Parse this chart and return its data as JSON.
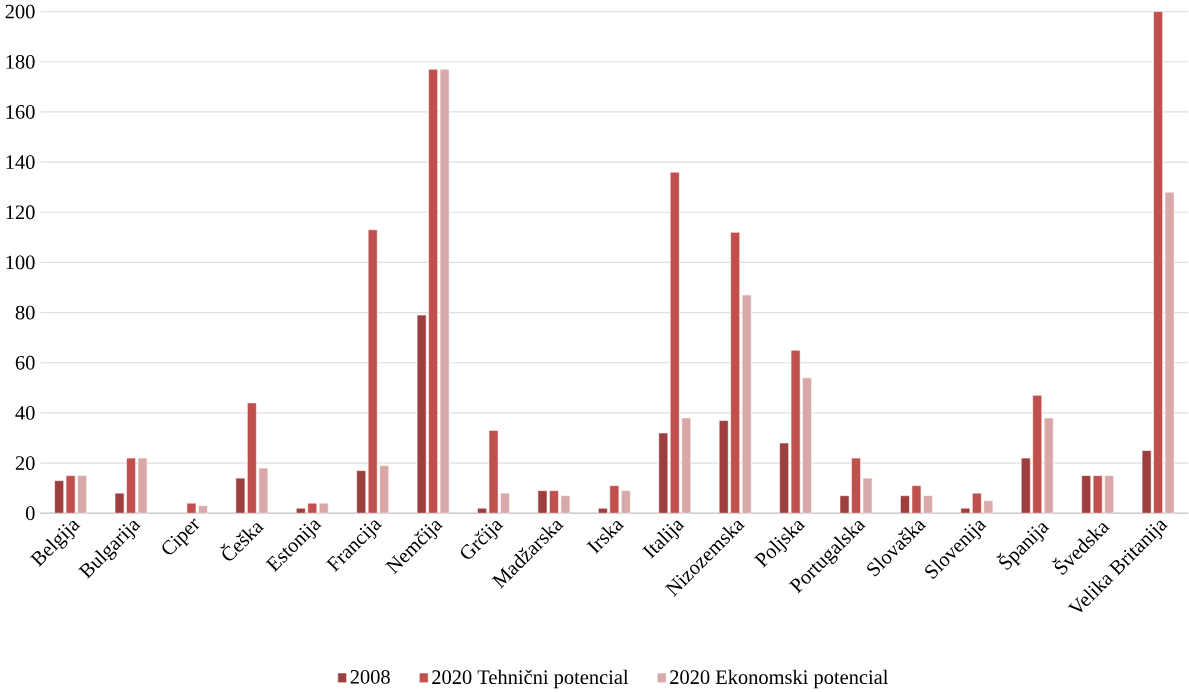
{
  "chart_data": {
    "type": "bar",
    "categories": [
      "Belgija",
      "Bulgarija",
      "Ciper",
      "Češka",
      "Estonija",
      "Francija",
      "Nemčija",
      "Grčija",
      "Madžarska",
      "Irska",
      "Italija",
      "Nizozemska",
      "Poljska",
      "Portugalska",
      "Slovaška",
      "Slovenija",
      "Španija",
      "Švedska",
      "Velika Britanija"
    ],
    "series": [
      {
        "name": "2008",
        "color": "#9e3f3f",
        "values": [
          13,
          8,
          null,
          14,
          2,
          17,
          79,
          2,
          9,
          2,
          32,
          37,
          28,
          7,
          7,
          2,
          22,
          15,
          25
        ]
      },
      {
        "name": "2020 Tehnični potencial",
        "color": "#c0504d",
        "values": [
          15,
          22,
          4,
          44,
          4,
          113,
          177,
          33,
          9,
          11,
          136,
          112,
          65,
          22,
          11,
          8,
          47,
          15,
          200
        ]
      },
      {
        "name": "2020 Ekonomski potencial",
        "color": "#d9a8a8",
        "values": [
          15,
          22,
          3,
          18,
          4,
          19,
          177,
          8,
          7,
          9,
          38,
          87,
          54,
          14,
          7,
          5,
          38,
          15,
          128
        ]
      }
    ],
    "ylim": [
      0,
      200
    ],
    "yticks": [
      0,
      20,
      40,
      60,
      80,
      100,
      120,
      140,
      160,
      180,
      200
    ],
    "grid": "y",
    "legend": "bottom"
  }
}
